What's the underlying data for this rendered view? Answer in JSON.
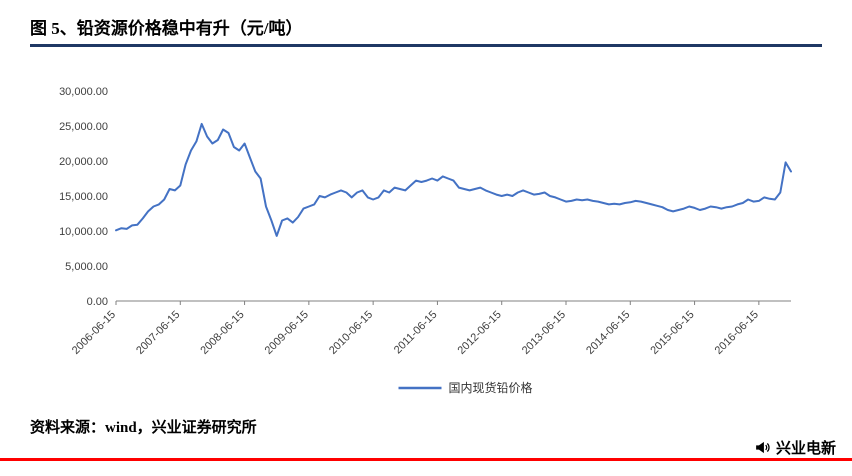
{
  "header": {
    "title": "图 5、铅资源价格稳中有升（元/吨）"
  },
  "footer": {
    "source": "资料来源：wind，兴业证券研究所",
    "brand": "兴业电新"
  },
  "colors": {
    "line": "#4472C4",
    "title_rule": "#1F3864",
    "footer_rule": "#FF0000",
    "axis": "#808080"
  },
  "chart_data": {
    "type": "line",
    "title": "铅资源价格稳中有升（元/吨）",
    "unit": "元/吨",
    "legend": "国内现货铅价格",
    "legend_position": "bottom",
    "grid": false,
    "ylim": [
      0,
      30000
    ],
    "y_ticks": [
      {
        "value": 0,
        "label": "0.00"
      },
      {
        "value": 5000,
        "label": "5,000.00"
      },
      {
        "value": 10000,
        "label": "10,000.00"
      },
      {
        "value": 15000,
        "label": "15,000.00"
      },
      {
        "value": 20000,
        "label": "20,000.00"
      },
      {
        "value": 25000,
        "label": "25,000.00"
      },
      {
        "value": 30000,
        "label": "30,000.00"
      }
    ],
    "x_start_month": "2006-06",
    "x_tick_labels": [
      "2006-06-15",
      "2007-06-15",
      "2008-06-15",
      "2009-06-15",
      "2010-06-15",
      "2011-06-15",
      "2012-06-15",
      "2013-06-15",
      "2014-06-15",
      "2015-06-15",
      "2016-06-15"
    ],
    "x_tick_indices": [
      0,
      12,
      24,
      36,
      48,
      60,
      72,
      84,
      96,
      108,
      120
    ],
    "values": [
      10100,
      10400,
      10300,
      10800,
      10900,
      11800,
      12800,
      13500,
      13800,
      14500,
      16000,
      15800,
      16500,
      19500,
      21500,
      22800,
      25300,
      23500,
      22500,
      23000,
      24500,
      24000,
      22000,
      21500,
      22500,
      20500,
      18500,
      17500,
      13500,
      11500,
      9300,
      11500,
      11800,
      11200,
      12000,
      13200,
      13500,
      13800,
      15000,
      14800,
      15200,
      15500,
      15800,
      15500,
      14800,
      15500,
      15800,
      14800,
      14500,
      14800,
      15800,
      15500,
      16200,
      16000,
      15800,
      16500,
      17200,
      17000,
      17200,
      17500,
      17200,
      17800,
      17500,
      17200,
      16200,
      16000,
      15800,
      16000,
      16200,
      15800,
      15500,
      15200,
      15000,
      15200,
      15000,
      15500,
      15800,
      15500,
      15200,
      15300,
      15500,
      15000,
      14800,
      14500,
      14200,
      14300,
      14500,
      14400,
      14500,
      14300,
      14200,
      14000,
      13800,
      13900,
      13800,
      14000,
      14100,
      14300,
      14200,
      14000,
      13800,
      13600,
      13400,
      13000,
      12800,
      13000,
      13200,
      13500,
      13300,
      13000,
      13200,
      13500,
      13400,
      13200,
      13400,
      13500,
      13800,
      14000,
      14500,
      14200,
      14300,
      14800,
      14600,
      14500,
      15500,
      19800,
      18500
    ]
  }
}
